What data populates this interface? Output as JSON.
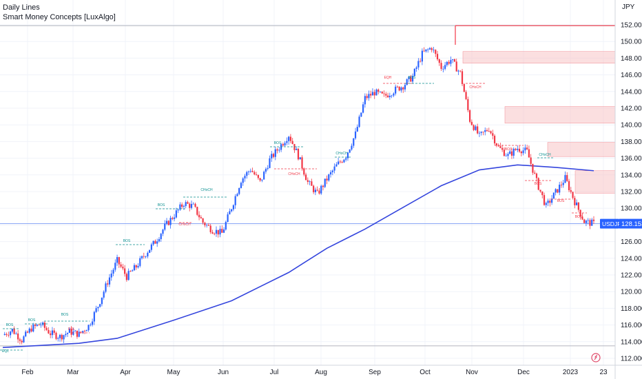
{
  "legend": {
    "line1": "Daily Lines",
    "line2": "Smart Money Concepts [LuxAlgo]"
  },
  "chart_data": {
    "type": "candlestick",
    "symbol": "USDJPY",
    "currency_label": "JPY",
    "last_price": "128.153",
    "y_ticks": [
      "152.000",
      "150.000",
      "148.000",
      "146.000",
      "144.000",
      "142.000",
      "140.000",
      "138.000",
      "136.000",
      "134.000",
      "132.000",
      "130.000",
      "128.000",
      "126.000",
      "124.000",
      "122.000",
      "120.000",
      "118.000",
      "116.000",
      "114.000",
      "112.000"
    ],
    "y_tick_values": [
      152,
      150,
      148,
      146,
      144,
      142,
      140,
      138,
      136,
      134,
      132,
      130,
      128,
      126,
      124,
      122,
      120,
      118,
      116,
      114,
      112
    ],
    "x_ticks": [
      "Feb",
      "Mar",
      "Apr",
      "May",
      "Jun",
      "Jul",
      "Aug",
      "Sep",
      "Oct",
      "Nov",
      "Dec",
      "2023",
      "23"
    ],
    "ylim": [
      111.2,
      153.5
    ],
    "price_path": [
      [
        0,
        114.8
      ],
      [
        5,
        115.4
      ],
      [
        10,
        114.2
      ],
      [
        15,
        115.6
      ],
      [
        20,
        116.1
      ],
      [
        25,
        115.0
      ],
      [
        30,
        114.6
      ],
      [
        35,
        115.2
      ],
      [
        40,
        114.9
      ],
      [
        45,
        115.9
      ],
      [
        50,
        118.3
      ],
      [
        55,
        121.2
      ],
      [
        60,
        123.7
      ],
      [
        65,
        121.8
      ],
      [
        70,
        123.0
      ],
      [
        75,
        124.6
      ],
      [
        80,
        126.0
      ],
      [
        85,
        127.8
      ],
      [
        90,
        129.2
      ],
      [
        95,
        130.6
      ],
      [
        100,
        130.2
      ],
      [
        105,
        128.3
      ],
      [
        110,
        127.4
      ],
      [
        115,
        127.0
      ],
      [
        120,
        130.1
      ],
      [
        125,
        133.4
      ],
      [
        130,
        134.7
      ],
      [
        135,
        133.1
      ],
      [
        140,
        135.8
      ],
      [
        145,
        137.3
      ],
      [
        150,
        138.8
      ],
      [
        155,
        136.3
      ],
      [
        160,
        133.1
      ],
      [
        165,
        131.7
      ],
      [
        170,
        133.5
      ],
      [
        175,
        135.1
      ],
      [
        180,
        136.3
      ],
      [
        185,
        138.9
      ],
      [
        190,
        143.2
      ],
      [
        195,
        143.9
      ],
      [
        200,
        143.4
      ],
      [
        205,
        144.1
      ],
      [
        210,
        144.7
      ],
      [
        215,
        145.8
      ],
      [
        220,
        148.5
      ],
      [
        225,
        149.3
      ],
      [
        230,
        146.9
      ],
      [
        235,
        147.8
      ],
      [
        240,
        146.2
      ],
      [
        245,
        140.6
      ],
      [
        250,
        138.6
      ],
      [
        255,
        139.6
      ],
      [
        260,
        137.3
      ],
      [
        265,
        136.3
      ],
      [
        270,
        137.2
      ],
      [
        275,
        136.8
      ],
      [
        280,
        133.2
      ],
      [
        285,
        130.2
      ],
      [
        290,
        131.9
      ],
      [
        295,
        133.6
      ],
      [
        300,
        130.8
      ],
      [
        305,
        128.4
      ],
      [
        310,
        128.15
      ]
    ],
    "moving_average": [
      [
        0,
        113.3
      ],
      [
        40,
        113.8
      ],
      [
        60,
        114.4
      ],
      [
        90,
        116.6
      ],
      [
        120,
        118.9
      ],
      [
        150,
        122.3
      ],
      [
        170,
        125.2
      ],
      [
        190,
        127.5
      ],
      [
        210,
        130.1
      ],
      [
        230,
        132.7
      ],
      [
        250,
        134.6
      ],
      [
        270,
        135.2
      ],
      [
        290,
        134.9
      ],
      [
        310,
        134.5
      ]
    ],
    "smc_labels": [
      {
        "text": "BOS",
        "day": 4,
        "price": 116.1,
        "kind": "bull"
      },
      {
        "text": "BOS",
        "day": 16,
        "price": 116.5,
        "kind": "bull"
      },
      {
        "text": "BOS",
        "day": 38,
        "price": 116.8,
        "kind": "bull"
      },
      {
        "text": "EQL",
        "day": 1,
        "price": 113.0,
        "kind": "bull"
      },
      {
        "text": "EQL",
        "day": 42,
        "price": 115.8,
        "kind": "bear"
      },
      {
        "text": "BOS",
        "day": 72,
        "price": 126.1,
        "kind": "bull"
      },
      {
        "text": "BOS",
        "day": 92,
        "price": 131.0,
        "kind": "bull"
      },
      {
        "text": "CHoCH",
        "day": 110,
        "price": 132.2,
        "kind": "bull"
      },
      {
        "text": "CHoCH",
        "day": 102,
        "price": 129.6,
        "kind": "bear"
      },
      {
        "text": "BOS",
        "day": 157,
        "price": 137.4,
        "kind": "bull"
      },
      {
        "text": "CHoCH",
        "day": 168,
        "price": 134.0,
        "kind": "bear"
      },
      {
        "text": "CHoCH",
        "day": 192,
        "price": 135.6,
        "kind": "bull"
      },
      {
        "text": "EQH",
        "day": 220,
        "price": 144.9,
        "kind": "bear"
      },
      {
        "text": "BOS",
        "day": 234,
        "price": 145.0,
        "kind": "bull"
      },
      {
        "text": "CHoCH",
        "day": 269,
        "price": 143.4,
        "kind": "bear"
      },
      {
        "text": "BOS",
        "day": 288,
        "price": 137.0,
        "kind": "bear"
      },
      {
        "text": "CHoCH",
        "day": 310,
        "price": 136.3,
        "kind": "bull"
      },
      {
        "text": "BOS",
        "day": 315,
        "price": 133.0,
        "kind": "bear"
      },
      {
        "text": "BOS",
        "day": 325,
        "price": 130.5,
        "kind": "bear"
      },
      {
        "text": "BOS",
        "day": 338,
        "price": 129.2,
        "kind": "bear"
      }
    ],
    "supply_zones": [
      {
        "from_day": 265,
        "to_day": 360,
        "top": 148.8,
        "bottom": 147.4
      },
      {
        "from_day": 285,
        "to_day": 360,
        "top": 142.2,
        "bottom": 140.2
      },
      {
        "from_day": 305,
        "to_day": 360,
        "top": 137.9,
        "bottom": 136.2
      },
      {
        "from_day": 325,
        "to_day": 360,
        "top": 134.5,
        "bottom": 131.8
      }
    ],
    "high_line_price": 151.9,
    "low_line_price": 113.5
  },
  "colors": {
    "bull": "#2962ff",
    "bear": "#f23645",
    "ma": "#3344dd",
    "zone": "#f7c4c7",
    "label_bg": "#2962ff",
    "grid": "#f0f3fa"
  }
}
